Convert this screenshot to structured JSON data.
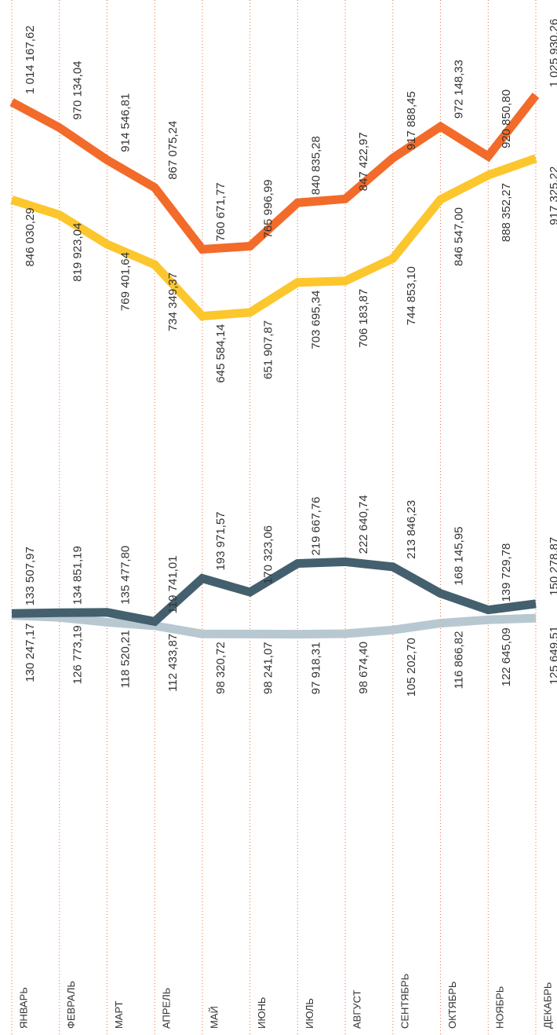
{
  "chart_data": {
    "type": "line",
    "categories": [
      "ЯНВАРЬ",
      "ФЕВРАЛЬ",
      "МАРТ",
      "АПРЕЛЬ",
      "МАЙ",
      "ИЮНЬ",
      "ИЮЛЬ",
      "АВГУСТ",
      "СЕНТЯБРЬ",
      "ОКТЯБРЬ",
      "НОЯБРЬ",
      "ДЕКАБРЬ"
    ],
    "ylim": [
      0,
      1190000
    ],
    "grid": true,
    "series": [
      {
        "color": "#f26b2a",
        "label_side": "above",
        "values": [
          1014167.62,
          970134.04,
          914546.81,
          867075.24,
          760671.77,
          765996.99,
          840835.28,
          847422.97,
          917888.45,
          972148.33,
          920850.8,
          1025930.26
        ],
        "value_labels": [
          "1 014 167,62",
          "970 134,04",
          "914 546,81",
          "867 075,24",
          "760 671,77",
          "765 996,99",
          "840 835,28",
          "847 422,97",
          "917 888,45",
          "972 148,33",
          "920 850,80",
          "1 025 930,26"
        ]
      },
      {
        "color": "#fcc62d",
        "label_side": "below",
        "values": [
          846030.29,
          819923.04,
          769401.64,
          734349.37,
          645584.14,
          651907.87,
          703695.34,
          706183.87,
          744853.1,
          846547.0,
          888352.27,
          917325.22
        ],
        "value_labels": [
          "846 030,29",
          "819 923,04",
          "769 401,64",
          "734 349,37",
          "645 584,14",
          "651 907,87",
          "703 695,34",
          "706 183,87",
          "744 853,10",
          "846 547,00",
          "888 352,27",
          "917 325,22"
        ]
      },
      {
        "color": "#44606e",
        "label_side": "above",
        "values": [
          133507.97,
          134851.19,
          135477.8,
          119741.01,
          193971.57,
          170323.06,
          219667.76,
          222640.74,
          213846.23,
          168145.95,
          139729.78,
          150278.87
        ],
        "value_labels": [
          "133 507,97",
          "134 851,19",
          "135 477,80",
          "119 741,01",
          "193 971,57",
          "170 323,06",
          "219 667,76",
          "222 640,74",
          "213 846,23",
          "168 145,95",
          "139 729,78",
          "150 278,87"
        ]
      },
      {
        "color": "#b8c8d0",
        "label_side": "below",
        "values": [
          130247.17,
          126773.19,
          118520.21,
          112433.87,
          98320.72,
          98241.07,
          97918.31,
          98674.4,
          105202.7,
          116866.82,
          122645.09,
          125649.51
        ],
        "value_labels": [
          "130 247,17",
          "126 773,19",
          "118 520,21",
          "112 433,87",
          "98 320,72",
          "98 241,07",
          "97 918,31",
          "98 674,40",
          "105 202,70",
          "116 866,82",
          "122 645,09",
          "125 649,51"
        ]
      }
    ]
  }
}
